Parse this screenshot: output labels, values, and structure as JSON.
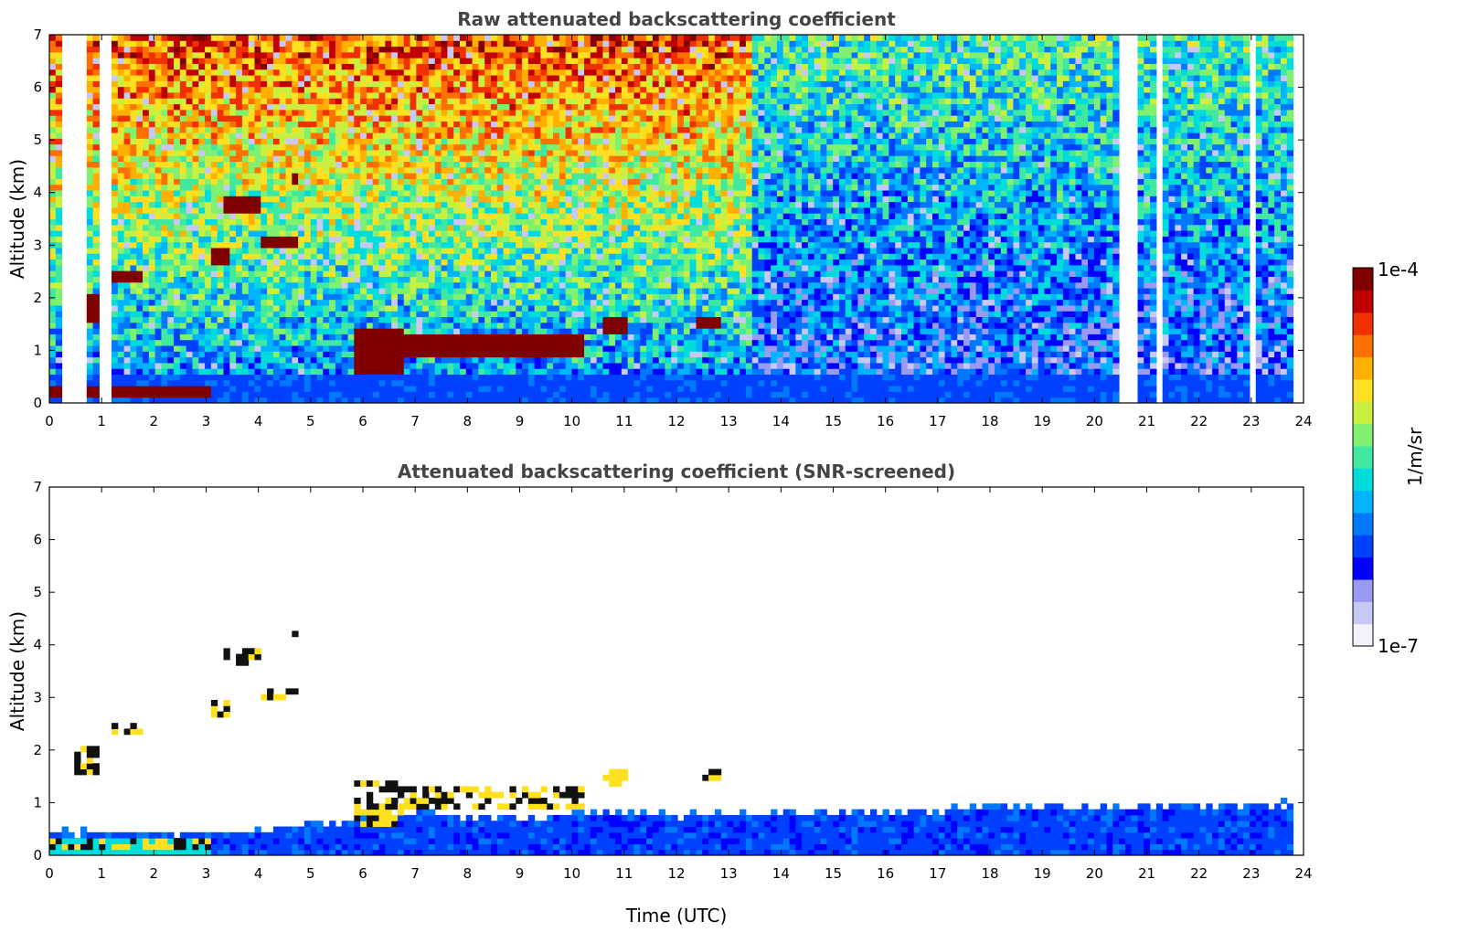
{
  "colors": {
    "colormap": [
      "#f2f2fb",
      "#c8c8f5",
      "#9a9af2",
      "#0000ff",
      "#0040ff",
      "#0078ff",
      "#00b4ff",
      "#00dcdc",
      "#40e8a0",
      "#80f070",
      "#c8f040",
      "#ffe020",
      "#ffb000",
      "#ff7000",
      "#f03000",
      "#c00000",
      "#800000"
    ],
    "frame": "#000000",
    "title": "#444444"
  },
  "colorbar": {
    "max_label": "1e-4",
    "min_label": "1e-7",
    "unit_label": "1/m/sr"
  },
  "chart_data": [
    {
      "type": "heatmap",
      "title": "Raw attenuated backscattering coefficient",
      "xlabel": "",
      "ylabel": "Altitude (km)",
      "xlim": [
        0,
        24
      ],
      "ylim": [
        0,
        7
      ],
      "x_ticks": [
        "0",
        "1",
        "2",
        "3",
        "4",
        "5",
        "6",
        "7",
        "8",
        "9",
        "10",
        "11",
        "12",
        "13",
        "14",
        "15",
        "16",
        "17",
        "18",
        "19",
        "20",
        "21",
        "22",
        "23",
        "24"
      ],
      "y_ticks": [
        "0",
        "1",
        "2",
        "3",
        "4",
        "5",
        "6",
        "7"
      ],
      "data_extent_hours": [
        0,
        23.8
      ],
      "boundary_layer_top_km": 0.6,
      "noise_background": "high noise aloft, increasing with altitude and during daytime (0-13 UTC)",
      "cloud_layers": [
        {
          "t_start": 0.0,
          "t_end": 3.1,
          "alt_km": 0.2,
          "thickness_km": 0.1
        },
        {
          "t_start": 3.3,
          "t_end": 4.0,
          "alt_km": 3.8,
          "thickness_km": 0.25
        },
        {
          "t_start": 3.1,
          "t_end": 3.5,
          "alt_km": 2.8,
          "thickness_km": 0.15
        },
        {
          "t_start": 4.0,
          "t_end": 4.8,
          "alt_km": 3.05,
          "thickness_km": 0.2
        },
        {
          "t_start": 4.6,
          "t_end": 4.8,
          "alt_km": 4.25,
          "thickness_km": 0.12
        },
        {
          "t_start": 1.1,
          "t_end": 1.8,
          "alt_km": 2.45,
          "thickness_km": 0.12
        },
        {
          "t_start": 0.5,
          "t_end": 1.0,
          "alt_km": 1.8,
          "thickness_km": 0.5
        },
        {
          "t_start": 5.8,
          "t_end": 6.8,
          "alt_km": 1.0,
          "thickness_km": 0.8
        },
        {
          "t_start": 6.8,
          "t_end": 10.2,
          "alt_km": 1.1,
          "thickness_km": 0.4
        },
        {
          "t_start": 10.6,
          "t_end": 11.1,
          "alt_km": 1.45,
          "thickness_km": 0.25
        },
        {
          "t_start": 12.4,
          "t_end": 12.8,
          "alt_km": 1.5,
          "thickness_km": 0.15
        }
      ],
      "missing_profiles_hours": [
        0.3,
        0.45,
        0.55,
        0.65,
        1.05,
        1.15,
        20.5,
        20.6,
        20.7,
        21.25,
        23.05
      ]
    },
    {
      "type": "heatmap",
      "title": "Attenuated backscattering coefficient (SNR-screened)",
      "xlabel": "Time (UTC)",
      "ylabel": "Altitude (km)",
      "xlim": [
        0,
        24
      ],
      "ylim": [
        0,
        7
      ],
      "x_ticks": [
        "0",
        "1",
        "2",
        "3",
        "4",
        "5",
        "6",
        "7",
        "8",
        "9",
        "10",
        "11",
        "12",
        "13",
        "14",
        "15",
        "16",
        "17",
        "18",
        "19",
        "20",
        "21",
        "22",
        "23",
        "24"
      ],
      "y_ticks": [
        "0",
        "1",
        "2",
        "3",
        "4",
        "5",
        "6",
        "7"
      ],
      "data_extent_hours": [
        0,
        23.8
      ],
      "screened_signal_top_km": [
        {
          "t": 0,
          "alt": 0.45
        },
        {
          "t": 3,
          "alt": 0.4
        },
        {
          "t": 5,
          "alt": 0.6
        },
        {
          "t": 7,
          "alt": 0.8
        },
        {
          "t": 9,
          "alt": 0.7
        },
        {
          "t": 10.5,
          "alt": 0.85
        },
        {
          "t": 12,
          "alt": 0.75
        },
        {
          "t": 14,
          "alt": 0.8
        },
        {
          "t": 17,
          "alt": 0.85
        },
        {
          "t": 20,
          "alt": 0.95
        },
        {
          "t": 23.8,
          "alt": 1.0
        }
      ]
    }
  ]
}
